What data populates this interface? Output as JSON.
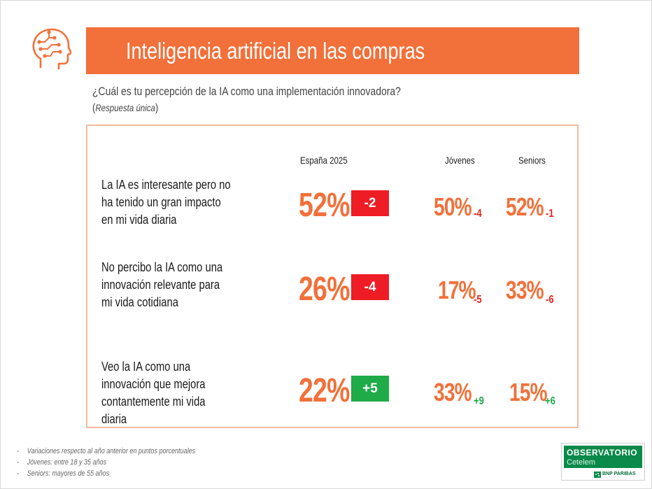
{
  "title": "Inteligencia artificial en las compras",
  "question": "¿Cuál es tu percepción de la IA como una implementación innovadora?",
  "note": "Respuesta única",
  "columns": {
    "spain": "España 2025",
    "youth": "Jóvenes",
    "seniors": "Seniors"
  },
  "rows": [
    {
      "label": "La IA es interesante pero no ha tenido un gran impacto en mi vida diaria",
      "spain": "52%",
      "spain_delta": "-2",
      "youth": "50%",
      "youth_delta": "-4",
      "seniors": "52%",
      "seniors_delta": "-1"
    },
    {
      "label": "No percibo la IA como una innovación relevante para mi vida cotidiana",
      "spain": "26%",
      "spain_delta": "-4",
      "youth": "17%",
      "youth_delta": "-5",
      "seniors": "33%",
      "seniors_delta": "-6"
    },
    {
      "label": "Veo la IA como una innovación que mejora contantemente mi vida diaria",
      "spain": "22%",
      "spain_delta": "+5",
      "youth": "33%",
      "youth_delta": "+9",
      "seniors": "15%",
      "seniors_delta": "+6"
    }
  ],
  "footnotes": [
    "Variaciones respecto al año anterior en puntos porcentuales",
    "Jóvenes: entre 18 y 35 años",
    "Seniors: mayores de 55 años"
  ],
  "logo": {
    "brand": "OBSERVATORIO",
    "sub": "Cetelem",
    "bank": "BNP PARIBAS"
  },
  "colors": {
    "accent": "#f2703a",
    "negative": "#ee1c25",
    "positive": "#1eab48",
    "panel_border": "#f5b9a0"
  },
  "icons": [
    "brain-circuit-icon"
  ]
}
